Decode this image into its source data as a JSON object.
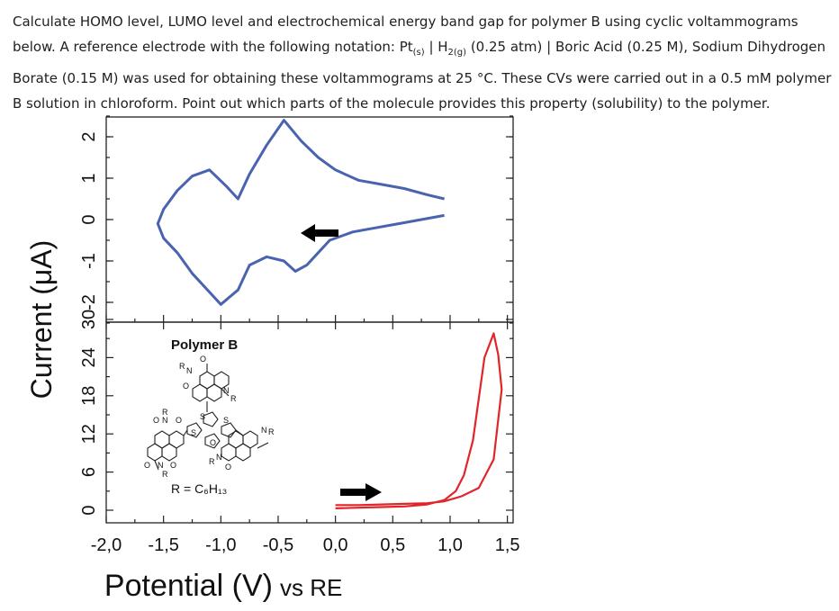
{
  "question": {
    "p1": "Calculate HOMO level, LUMO level and electrochemical energy band gap for polymer B using cyclic voltammograms below. A reference electrode with the following notation: Pt",
    "sub1": "(s)",
    "p2": " | H",
    "sub2": "2(g)",
    "p3": " (0.25 atm) | Boric Acid (0.25 M), Sodium Dihydrogen Borate (0.15 M) was used for obtaining these voltammograms at 25 °C. These CVs were carried out in a 0.5 mM polymer B solution in chloroform. Point out which parts of the molecule provides this property (solubility) to the polymer."
  },
  "figure": {
    "ylabel": "Current (μA)",
    "xlabel_main": "Potential (V)",
    "xlabel_suffix": "vs RE",
    "molecule_title": "Polymer B",
    "molecule_r_label": "R = C₆H₁₃"
  },
  "colors": {
    "top_curve": "#4a63b0",
    "bottom_curve": "#e0262a",
    "arrow": "#000000"
  },
  "chart_data": [
    {
      "type": "line",
      "panel": "top",
      "ylabel": "Current (μA)",
      "xlim": [
        -2.0,
        1.55
      ],
      "ylim": [
        -2.5,
        2.5
      ],
      "y_ticks": [
        "2",
        "1",
        "0",
        "-1",
        "-2"
      ],
      "y_tick_values": [
        2,
        1,
        0,
        -1,
        -2
      ],
      "series": [
        {
          "x": [
            0.95,
            0.75,
            0.55,
            0.35,
            0.15,
            -0.05,
            -0.15,
            -0.25,
            -0.35,
            -0.45,
            -0.6,
            -0.75,
            -0.85,
            -1.0,
            -1.1,
            -1.25,
            -1.38,
            -1.5,
            -1.55,
            -1.5,
            -1.38,
            -1.25,
            -1.1,
            -0.95,
            -0.85,
            -0.75,
            -0.6,
            -0.45,
            -0.3,
            -0.15,
            0.0,
            0.2,
            0.4,
            0.6,
            0.8,
            0.95
          ],
          "y": [
            0.1,
            0.0,
            -0.1,
            -0.2,
            -0.3,
            -0.5,
            -0.8,
            -1.1,
            -1.25,
            -1.0,
            -0.9,
            -1.1,
            -1.7,
            -2.05,
            -1.75,
            -1.3,
            -0.8,
            -0.45,
            -0.1,
            0.25,
            0.7,
            1.05,
            1.2,
            0.8,
            0.5,
            1.1,
            1.8,
            2.4,
            1.9,
            1.5,
            1.2,
            0.95,
            0.85,
            0.75,
            0.6,
            0.5
          ]
        }
      ],
      "annotations": [
        "arrow pointing left"
      ]
    },
    {
      "type": "line",
      "panel": "bottom",
      "xlabel": "Potential (V) vs RE",
      "xlim": [
        -2.0,
        1.55
      ],
      "ylim": [
        0,
        30
      ],
      "x_ticks": [
        "-2,0",
        "-1,5",
        "-1,0",
        "-0,5",
        "0,0",
        "0,5",
        "1,0",
        "1,5"
      ],
      "x_tick_values": [
        -2.0,
        -1.5,
        -1.0,
        -0.5,
        0.0,
        0.5,
        1.0,
        1.5
      ],
      "y_ticks": [
        "30",
        "24",
        "18",
        "12",
        "6",
        "0"
      ],
      "y_tick_values": [
        30,
        24,
        18,
        12,
        6,
        0
      ],
      "series": [
        {
          "x": [
            0.0,
            0.2,
            0.4,
            0.6,
            0.8,
            0.95,
            1.05,
            1.12,
            1.2,
            1.25,
            1.3,
            1.38,
            1.42,
            1.45,
            1.38,
            1.25,
            1.1,
            0.95,
            0.8,
            0.6,
            0.4,
            0.2,
            0.0
          ],
          "y": [
            0.3,
            0.4,
            0.5,
            0.6,
            0.9,
            1.6,
            3.0,
            5.5,
            11.0,
            17.5,
            24.0,
            27.8,
            24.5,
            19.0,
            8.0,
            3.5,
            2.2,
            1.4,
            1.1,
            1.0,
            0.9,
            0.8,
            0.8
          ]
        }
      ],
      "annotations": [
        "arrow pointing right"
      ]
    }
  ]
}
